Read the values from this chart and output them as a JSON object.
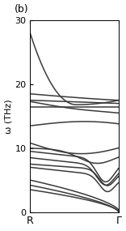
{
  "title": "(b)",
  "xlabel_left": "R",
  "xlabel_right": "Γ",
  "ylabel": "ω (THz)",
  "xlim": [
    0,
    1
  ],
  "ylim": [
    0,
    30
  ],
  "yticks": [
    0,
    10,
    20,
    30
  ],
  "background_color": "#ffffff",
  "line_color": "#3a3a3a",
  "line_width": 1.1,
  "figsize": [
    1.56,
    2.85
  ],
  "dpi": 100
}
